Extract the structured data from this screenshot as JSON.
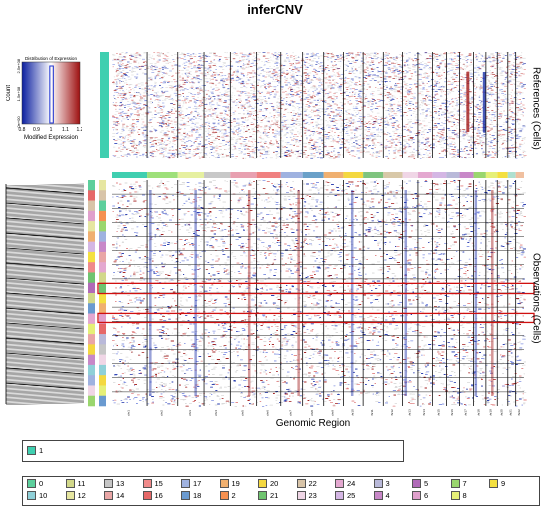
{
  "chart_data": {
    "type": "heatmap",
    "title": "inferCNV",
    "xlabel": "Genomic Region",
    "references_label": "References (Cells)",
    "observations_label": "Observations (Cells)",
    "color_key": {
      "title": "Distribution of Expression",
      "xlabel": "Modified Expression",
      "ylabel": "Count",
      "x_ticks": [
        "0.8",
        "0.9",
        "1",
        "1.1",
        "1.2"
      ],
      "y_ticks": [
        "0e+00",
        "1.5e+08",
        "2.5e+08"
      ],
      "low_color": "#0b1fa0",
      "mid_color": "#ffffff",
      "high_color": "#9e1010"
    },
    "chromosomes": [
      "chr1",
      "chr2",
      "chr3",
      "chr4",
      "chr5",
      "chr6",
      "chr7",
      "chr8",
      "chr9",
      "chr10",
      "chr11",
      "chr12",
      "chr13",
      "chr14",
      "chr15",
      "chr16",
      "chr17",
      "chr18",
      "chr19",
      "chr20",
      "chr21",
      "chr22"
    ],
    "reference_groups": [
      {
        "name": "1",
        "color": "#3fcfb0"
      }
    ],
    "observation_groups": [
      {
        "name": "0",
        "color": "#5ccf9c"
      },
      {
        "name": "10",
        "color": "#8fd0d8"
      },
      {
        "name": "11",
        "color": "#d2d88a"
      },
      {
        "name": "12",
        "color": "#e6e6a0"
      },
      {
        "name": "13",
        "color": "#c6c6c6"
      },
      {
        "name": "14",
        "color": "#e9a6a6"
      },
      {
        "name": "15",
        "color": "#f08a8a"
      },
      {
        "name": "16",
        "color": "#e66868"
      },
      {
        "name": "17",
        "color": "#9fb2e0"
      },
      {
        "name": "18",
        "color": "#6a9ad0"
      },
      {
        "name": "19",
        "color": "#f0b070"
      },
      {
        "name": "2",
        "color": "#f59050"
      },
      {
        "name": "20",
        "color": "#f4d840"
      },
      {
        "name": "21",
        "color": "#6fc46f"
      },
      {
        "name": "22",
        "color": "#d8c4a8"
      },
      {
        "name": "23",
        "color": "#f0d6e6"
      },
      {
        "name": "24",
        "color": "#e4a8d0"
      },
      {
        "name": "25",
        "color": "#d4b6e4"
      },
      {
        "name": "3",
        "color": "#b9b9d9"
      },
      {
        "name": "4",
        "color": "#c888c8"
      },
      {
        "name": "5",
        "color": "#b06ab8"
      },
      {
        "name": "6",
        "color": "#e0a0cc"
      },
      {
        "name": "7",
        "color": "#9ad66e"
      },
      {
        "name": "8",
        "color": "#e6f078"
      },
      {
        "name": "9",
        "color": "#f4e040"
      }
    ],
    "highlighted_regions": [
      "observation band 1",
      "observation band 2"
    ]
  },
  "colors": {
    "chrom_bar": [
      "#3fcfb0",
      "#9ee07a",
      "#e6f0a0",
      "#c8c8c8",
      "#e8a0b0",
      "#f08080",
      "#9fb2e0",
      "#6aa0c8",
      "#f0b070",
      "#f4d840",
      "#7fc47f",
      "#d8c8a8",
      "#f0d6e6",
      "#e4a8d0",
      "#d4b6e4",
      "#b9b9d9",
      "#c888c8",
      "#9ad66e",
      "#e6f078",
      "#f4e040",
      "#aee0d0",
      "#f0c0a0"
    ],
    "highlight": "#d01010"
  }
}
